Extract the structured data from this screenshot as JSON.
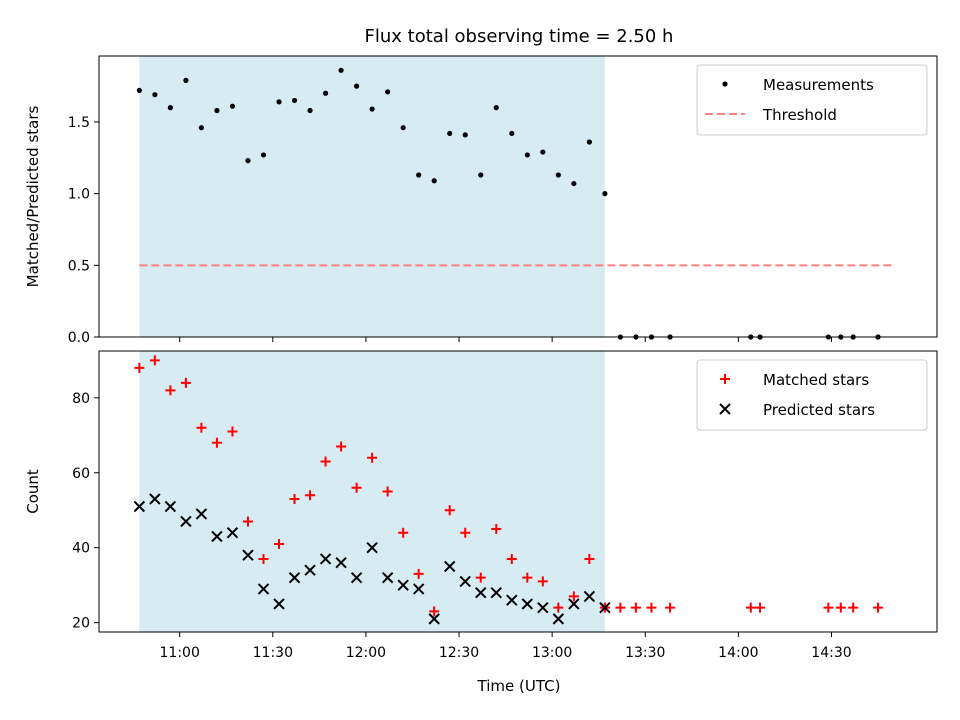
{
  "title": "Flux total observing time = 2.50 h",
  "xlabel": "Time (UTC)",
  "colors": {
    "shade": "#add8e6",
    "measurements": "#000000",
    "threshold": "#ff7f7f",
    "matched": "#ff0000",
    "predicted": "#000000"
  },
  "chart_data": [
    {
      "type": "scatter",
      "ylabel": "Matched/Predicted stars",
      "xlim": [
        "10:34",
        "15:04"
      ],
      "ylim": [
        0,
        1.96
      ],
      "yticks": [
        "0.0",
        "0.5",
        "1.0",
        "1.5"
      ],
      "shaded_interval": [
        "10:47",
        "13:17"
      ],
      "legend": {
        "placement": "top-right",
        "entries": [
          "Measurements",
          "Threshold"
        ]
      },
      "threshold": {
        "name": "Threshold",
        "value": 0.5,
        "x": [
          "10:47",
          "14:50"
        ]
      },
      "series": [
        {
          "name": "Measurements",
          "marker": "dot",
          "x": [
            "10:47",
            "10:52",
            "10:57",
            "11:02",
            "11:07",
            "11:12",
            "11:17",
            "11:22",
            "11:27",
            "11:32",
            "11:37",
            "11:42",
            "11:47",
            "11:52",
            "11:57",
            "12:02",
            "12:07",
            "12:12",
            "12:17",
            "12:22",
            "12:27",
            "12:32",
            "12:37",
            "12:42",
            "12:47",
            "12:52",
            "12:57",
            "13:02",
            "13:07",
            "13:12",
            "13:17",
            "13:22",
            "13:27",
            "13:32",
            "13:38",
            "14:04",
            "14:07",
            "14:29",
            "14:33",
            "14:37",
            "14:45"
          ],
          "y": [
            1.72,
            1.69,
            1.6,
            1.79,
            1.46,
            1.58,
            1.61,
            1.23,
            1.27,
            1.64,
            1.65,
            1.58,
            1.7,
            1.86,
            1.75,
            1.59,
            1.71,
            1.46,
            1.13,
            1.09,
            1.42,
            1.41,
            1.13,
            1.6,
            1.42,
            1.27,
            1.29,
            1.13,
            1.07,
            1.36,
            1.0,
            0,
            0,
            0,
            0,
            0,
            0,
            0,
            0,
            0,
            0
          ]
        }
      ]
    },
    {
      "type": "scatter",
      "ylabel": "Count",
      "xlim": [
        "10:34",
        "15:04"
      ],
      "ylim": [
        17.5,
        92.5
      ],
      "yticks": [
        "20",
        "40",
        "60",
        "80"
      ],
      "xticks": [
        "11:00",
        "11:30",
        "12:00",
        "12:30",
        "13:00",
        "13:30",
        "14:00",
        "14:30"
      ],
      "shaded_interval": [
        "10:47",
        "13:17"
      ],
      "legend": {
        "placement": "top-right",
        "entries": [
          "Matched stars",
          "Predicted stars"
        ]
      },
      "series": [
        {
          "name": "Matched stars",
          "marker": "plus",
          "x": [
            "10:47",
            "10:52",
            "10:57",
            "11:02",
            "11:07",
            "11:12",
            "11:17",
            "11:22",
            "11:27",
            "11:32",
            "11:37",
            "11:42",
            "11:47",
            "11:52",
            "11:57",
            "12:02",
            "12:07",
            "12:12",
            "12:17",
            "12:22",
            "12:27",
            "12:32",
            "12:37",
            "12:42",
            "12:47",
            "12:52",
            "12:57",
            "13:02",
            "13:07",
            "13:12",
            "13:17",
            "13:22",
            "13:27",
            "13:32",
            "13:38",
            "14:04",
            "14:07",
            "14:29",
            "14:33",
            "14:37",
            "14:45"
          ],
          "y": [
            88,
            90,
            82,
            84,
            72,
            68,
            71,
            47,
            37,
            41,
            53,
            54,
            63,
            67,
            56,
            64,
            55,
            44,
            33,
            23,
            50,
            44,
            32,
            45,
            37,
            32,
            31,
            24,
            27,
            37,
            24,
            24,
            24,
            24,
            24,
            24,
            24,
            24,
            24,
            24,
            24
          ]
        },
        {
          "name": "Predicted stars",
          "marker": "x",
          "x": [
            "10:47",
            "10:52",
            "10:57",
            "11:02",
            "11:07",
            "11:12",
            "11:17",
            "11:22",
            "11:27",
            "11:32",
            "11:37",
            "11:42",
            "11:47",
            "11:52",
            "11:57",
            "12:02",
            "12:07",
            "12:12",
            "12:17",
            "12:22",
            "12:27",
            "12:32",
            "12:37",
            "12:42",
            "12:47",
            "12:52",
            "12:57",
            "13:02",
            "13:07",
            "13:12",
            "13:17"
          ],
          "y": [
            51,
            53,
            51,
            47,
            49,
            43,
            44,
            38,
            29,
            25,
            32,
            34,
            37,
            36,
            32,
            40,
            32,
            30,
            29,
            21,
            35,
            31,
            28,
            28,
            26,
            25,
            24,
            21,
            25,
            27,
            24
          ]
        }
      ]
    }
  ]
}
